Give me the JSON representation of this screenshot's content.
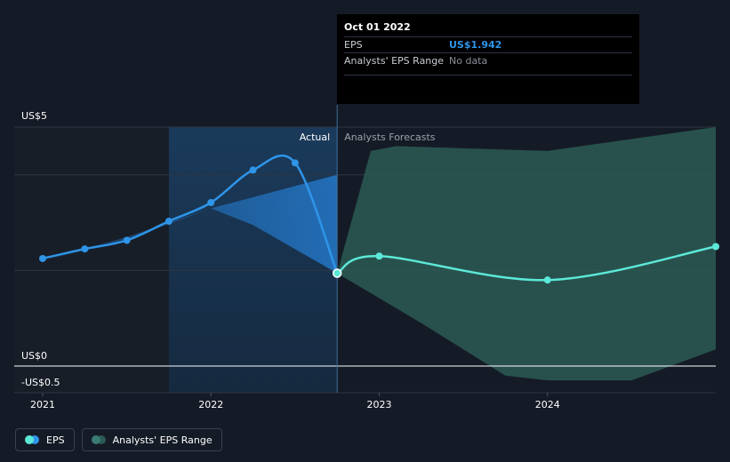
{
  "chart_data": {
    "type": "line",
    "y_tick_labels": [
      "US$5",
      "US$0",
      "-US$0.5"
    ],
    "x_tick_labels": [
      "2021",
      "2022",
      "2023",
      "2024"
    ],
    "ylim": [
      -0.5,
      5
    ],
    "region_labels": {
      "actual": "Actual",
      "forecast": "Analysts Forecasts"
    },
    "divider_date": 2022.75,
    "highlight_start": 2021.75,
    "series": [
      {
        "name": "EPS",
        "color": "#2e95e8",
        "points": [
          [
            2021.0,
            2.25
          ],
          [
            2021.25,
            2.45
          ],
          [
            2021.5,
            2.63
          ],
          [
            2021.75,
            3.03
          ],
          [
            2022.0,
            3.42
          ],
          [
            2022.25,
            4.1
          ],
          [
            2022.5,
            4.25
          ],
          [
            2022.75,
            1.942
          ]
        ]
      },
      {
        "name": "EPS",
        "color": "#5ce8d8",
        "points": [
          [
            2022.75,
            1.942
          ],
          [
            2023.0,
            2.3
          ],
          [
            2024.0,
            1.8
          ],
          [
            2025.0,
            2.5
          ]
        ]
      }
    ],
    "actual_range": {
      "color": "#2477c7",
      "upper": [
        [
          2021.0,
          2.2
        ],
        [
          2021.5,
          2.7
        ],
        [
          2022.0,
          3.3
        ],
        [
          2022.75,
          4.0
        ]
      ],
      "lower": [
        [
          2021.0,
          2.2
        ],
        [
          2021.5,
          2.65
        ],
        [
          2022.0,
          3.3
        ],
        [
          2022.25,
          2.95
        ],
        [
          2022.75,
          1.942
        ]
      ]
    },
    "forecast_range": {
      "name": "Analysts' EPS Range",
      "color": "#2c5a55",
      "upper": [
        [
          2022.75,
          1.942
        ],
        [
          2022.95,
          4.5
        ],
        [
          2023.1,
          4.6
        ],
        [
          2024.0,
          4.5
        ],
        [
          2025.0,
          5.0
        ]
      ],
      "lower": [
        [
          2022.75,
          1.942
        ],
        [
          2023.25,
          0.9
        ],
        [
          2023.75,
          -0.2
        ],
        [
          2024.0,
          -0.3
        ],
        [
          2024.5,
          -0.3
        ],
        [
          2025.0,
          0.35
        ]
      ]
    }
  },
  "tooltip": {
    "date": "Oct 01 2022",
    "rows": [
      {
        "label": "EPS",
        "value": "US$1.942"
      },
      {
        "label": "Analysts' EPS Range",
        "value": "No data"
      }
    ]
  },
  "legend": {
    "items": [
      {
        "label": "EPS",
        "colors": [
          "#5ce8d8",
          "#2e95e8"
        ]
      },
      {
        "label": "Analysts' EPS Range",
        "colors": [
          "#3a7b75",
          "#2c5a55"
        ]
      }
    ]
  }
}
